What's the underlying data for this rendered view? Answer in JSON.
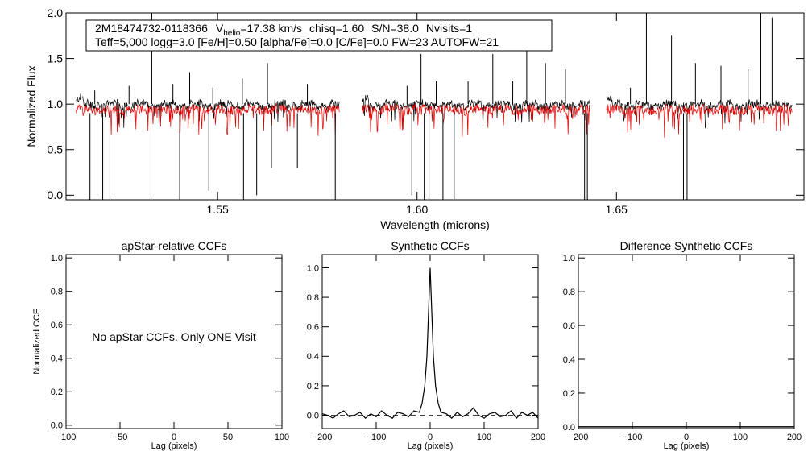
{
  "chart_data": [
    {
      "type": "line",
      "id": "spectrum",
      "header_line1": {
        "star_id": "2M18474732-0118366",
        "vhelio_symbol": "V",
        "vhelio_subscript": "helio",
        "vhelio_rest": "=17.38 km/s",
        "chisq": "chisq=1.60",
        "snr": "S/N=38.0",
        "nvisits": "Nvisits=1"
      },
      "header_line2": "Teff=5,000 logg=3.0 [Fe/H]=0.50 [alpha/Fe]=0.0 [C/Fe]=0.0 FW=23 AUTOFW=21",
      "xlabel": "Wavelength (microns)",
      "ylabel": "Normalized Flux",
      "xlim": [
        1.512,
        1.697
      ],
      "ylim": [
        -0.05,
        2.0
      ],
      "xticks": [
        1.55,
        1.6,
        1.65
      ],
      "xtick_labels": [
        "1.55",
        "1.60",
        "1.65"
      ],
      "yticks": [
        0.0,
        0.5,
        1.0,
        1.5,
        2.0
      ],
      "ytick_labels": [
        "0.0",
        "0.5",
        "1.0",
        "1.5",
        "2.0"
      ],
      "chips": [
        [
          1.5145,
          1.5805
        ],
        [
          1.5862,
          1.6433
        ],
        [
          1.6475,
          1.694
        ]
      ],
      "series": [
        {
          "name": "observed",
          "color": "#000000",
          "continuum": 0.99,
          "noise": 0.04
        },
        {
          "name": "synthetic",
          "color": "#e00000",
          "continuum": 0.94,
          "noise": 0.05
        }
      ],
      "emission_spikes": [
        {
          "x": 1.5192,
          "y": 1.15
        },
        {
          "x": 1.5278,
          "y": 1.2
        },
        {
          "x": 1.5335,
          "y": 2.0
        },
        {
          "x": 1.5388,
          "y": 1.22
        },
        {
          "x": 1.543,
          "y": 1.35
        },
        {
          "x": 1.5488,
          "y": 1.18
        },
        {
          "x": 1.5562,
          "y": 1.28
        },
        {
          "x": 1.5625,
          "y": 1.45
        },
        {
          "x": 1.5725,
          "y": 1.22
        },
        {
          "x": 1.5975,
          "y": 1.2
        },
        {
          "x": 1.601,
          "y": 1.55
        },
        {
          "x": 1.6048,
          "y": 1.25
        },
        {
          "x": 1.6128,
          "y": 1.25
        },
        {
          "x": 1.619,
          "y": 1.55
        },
        {
          "x": 1.624,
          "y": 1.25
        },
        {
          "x": 1.6275,
          "y": 1.65
        },
        {
          "x": 1.6322,
          "y": 1.45
        },
        {
          "x": 1.6372,
          "y": 1.38
        },
        {
          "x": 1.6535,
          "y": 1.18
        },
        {
          "x": 1.6575,
          "y": 2.0
        },
        {
          "x": 1.6638,
          "y": 1.75
        },
        {
          "x": 1.6698,
          "y": 1.45
        },
        {
          "x": 1.6762,
          "y": 1.42
        },
        {
          "x": 1.683,
          "y": 1.38
        },
        {
          "x": 1.6862,
          "y": 2.0
        },
        {
          "x": 1.689,
          "y": 1.95
        }
      ],
      "absorption_drops": [
        {
          "x": 1.518,
          "y": -0.05
        },
        {
          "x": 1.5212,
          "y": -0.05
        },
        {
          "x": 1.523,
          "y": -0.05
        },
        {
          "x": 1.5333,
          "y": -0.05
        },
        {
          "x": 1.5405,
          "y": -0.05
        },
        {
          "x": 1.5478,
          "y": 0.05
        },
        {
          "x": 1.5565,
          "y": -0.05
        },
        {
          "x": 1.5598,
          "y": 0.0
        },
        {
          "x": 1.5635,
          "y": 0.3
        },
        {
          "x": 1.57,
          "y": 0.3
        },
        {
          "x": 1.5795,
          "y": -0.05
        },
        {
          "x": 1.5987,
          "y": 0.0
        },
        {
          "x": 1.6018,
          "y": -0.05
        },
        {
          "x": 1.603,
          "y": -0.05
        },
        {
          "x": 1.6065,
          "y": -0.05
        },
        {
          "x": 1.6093,
          "y": -0.05
        },
        {
          "x": 1.642,
          "y": -0.05
        },
        {
          "x": 1.6427,
          "y": -0.05
        },
        {
          "x": 1.6668,
          "y": -0.05
        },
        {
          "x": 1.6677,
          "y": -0.05
        }
      ]
    },
    {
      "type": "line",
      "id": "apstar_ccf",
      "title": "apStar-relative CCFs",
      "xlabel": "Lag (pixels)",
      "ylabel": "Normalized CCF",
      "xlim": [
        -100,
        100
      ],
      "ylim": [
        -0.02,
        1.02
      ],
      "xticks": [
        -100,
        -50,
        0,
        50,
        100
      ],
      "xtick_labels": [
        "−100",
        "−50",
        "0",
        "50",
        "100"
      ],
      "yticks": [
        0.0,
        0.2,
        0.4,
        0.6,
        0.8,
        1.0
      ],
      "ytick_labels": [
        "0.0",
        "0.2",
        "0.4",
        "0.6",
        "0.8",
        "1.0"
      ],
      "annotation": "No apStar CCFs.  Only ONE Visit",
      "series": []
    },
    {
      "type": "line",
      "id": "synthetic_ccf",
      "title": "Synthetic CCFs",
      "xlabel": "Lag (pixels)",
      "xlim": [
        -200,
        200
      ],
      "ylim": [
        -0.09,
        1.09
      ],
      "xticks": [
        -200,
        -100,
        0,
        100,
        200
      ],
      "xtick_labels": [
        "−200",
        "−100",
        "0",
        "100",
        "200"
      ],
      "yticks": [
        0.0,
        0.2,
        0.4,
        0.6,
        0.8,
        1.0
      ],
      "ytick_labels": [
        "0.0",
        "0.2",
        "0.4",
        "0.6",
        "0.8",
        "1.0"
      ],
      "baseline": 0.0,
      "series": [
        {
          "name": "ccf",
          "x": [
            -200,
            -190,
            -180,
            -170,
            -160,
            -150,
            -140,
            -130,
            -120,
            -110,
            -100,
            -90,
            -80,
            -70,
            -60,
            -50,
            -40,
            -30,
            -20,
            -15,
            -10,
            -6,
            -3,
            0,
            3,
            6,
            10,
            15,
            20,
            30,
            40,
            50,
            60,
            70,
            80,
            90,
            100,
            110,
            120,
            130,
            140,
            150,
            160,
            170,
            180,
            190,
            200
          ],
          "y": [
            0.01,
            0.0,
            -0.02,
            0.01,
            0.03,
            -0.01,
            0.0,
            0.02,
            -0.02,
            0.01,
            -0.01,
            0.03,
            0.0,
            -0.02,
            0.02,
            0.01,
            -0.01,
            0.03,
            0.02,
            0.08,
            0.2,
            0.4,
            0.7,
            1.0,
            0.7,
            0.4,
            0.2,
            0.08,
            0.02,
            0.01,
            -0.02,
            0.02,
            -0.01,
            0.01,
            0.05,
            0.0,
            -0.02,
            0.01,
            0.02,
            -0.01,
            0.0,
            0.03,
            -0.02,
            0.02,
            0.0,
            0.02,
            -0.02
          ]
        }
      ]
    },
    {
      "type": "line",
      "id": "difference_ccf",
      "title": "Difference Synthetic CCFs",
      "xlabel": "Lag (pixels)",
      "xlim": [
        -200,
        200
      ],
      "ylim": [
        -0.01,
        1.02
      ],
      "xticks": [
        -200,
        -100,
        0,
        100,
        200
      ],
      "xtick_labels": [
        "−200",
        "−100",
        "0",
        "100",
        "200"
      ],
      "yticks": [
        0.0,
        0.2,
        0.4,
        0.6,
        0.8,
        1.0
      ],
      "ytick_labels": [
        "0.0",
        "0.2",
        "0.4",
        "0.6",
        "0.8",
        "1.0"
      ],
      "series": [
        {
          "name": "difference",
          "x": [
            -200,
            200
          ],
          "y": [
            0.0,
            0.0
          ]
        }
      ]
    }
  ]
}
